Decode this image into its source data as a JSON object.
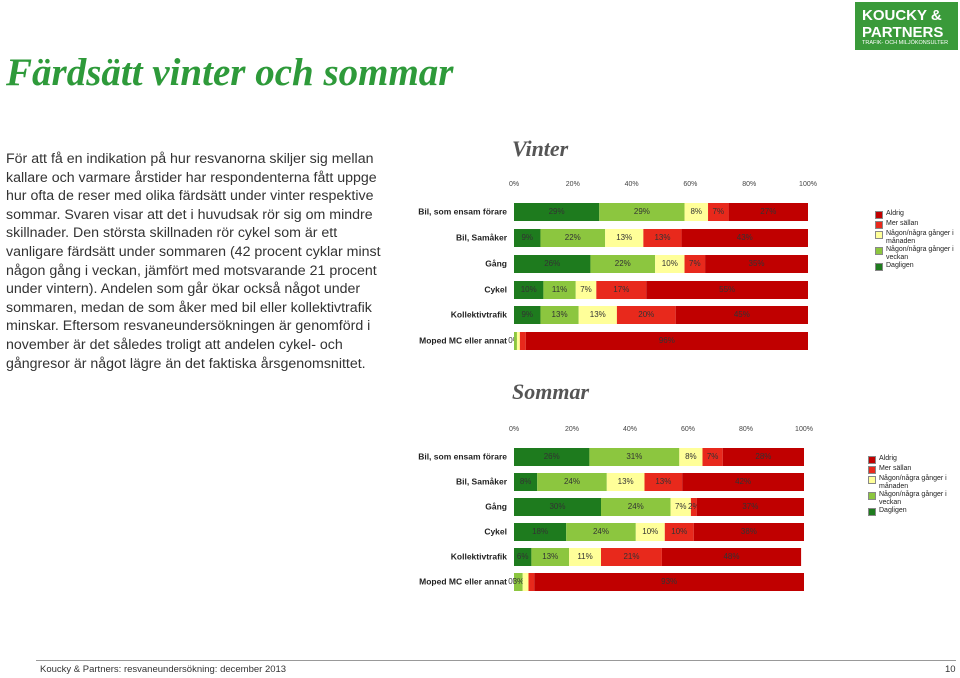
{
  "header": {
    "logo": "KOUCKY & PARTNERS",
    "logo_tagline": "TRAFIK- OCH MILJÖKONSULTER",
    "title": "Färdsätt vinter och sommar"
  },
  "body": {
    "paragraph": "För att få en indikation på hur resvanorna skiljer sig mellan kallare och varmare årstider har respondenterna fått uppge hur ofta de reser med olika färdsätt under vinter respektive sommar. Svaren visar att det i huvudsak rör sig om mindre skillnader. Den största skillnaden rör cykel som är ett vanligare färdsätt under sommaren (42 procent cyklar minst någon gång i veckan, jämfört med motsvarande 21 procent under vintern). Andelen som går ökar också något under sommaren, medan de som åker med bil eller kollektivtrafik minskar. Eftersom resvaneundersökningen är genomförd i november är det således troligt att andelen cykel- och gångresor är något lägre än det faktiska årsgenomsnittet."
  },
  "chart_data": [
    {
      "type": "stacked-barh",
      "title": "Vinter",
      "categories": [
        "Bil, som ensam förare",
        "Bil, Samåker",
        "Gång",
        "Cykel",
        "Kollektivtrafik",
        "Moped MC eller annat"
      ],
      "series": [
        {
          "name": "Dagligen",
          "color": "#1e7b1e",
          "values": [
            29,
            9,
            26,
            10,
            9,
            0
          ],
          "value_labels": [
            "29%",
            "9%",
            "26%",
            "10%",
            "9%",
            "0%"
          ]
        },
        {
          "name": "Någon/några gånger i veckan",
          "color": "#8cc63f",
          "values": [
            29,
            22,
            22,
            11,
            13,
            1
          ],
          "value_labels": [
            "29%",
            "22%",
            "22%",
            "11%",
            "13%",
            null
          ]
        },
        {
          "name": "Någon/några gånger i månaden",
          "color": "#ffff99",
          "values": [
            8,
            13,
            10,
            7,
            13,
            1
          ],
          "value_labels": [
            "8%",
            "13%",
            "10%",
            "7%",
            "13%",
            null
          ]
        },
        {
          "name": "Mer sällan",
          "color": "#e8291c",
          "values": [
            7,
            13,
            7,
            17,
            20,
            2
          ],
          "value_labels": [
            "7%",
            "13%",
            "7%",
            "17%",
            "20%",
            null
          ]
        },
        {
          "name": "Aldrig",
          "color": "#c00000",
          "values": [
            27,
            43,
            35,
            55,
            45,
            96
          ],
          "value_labels": [
            "27%",
            "43%",
            "35%",
            "55%",
            "45%",
            "96%"
          ]
        }
      ],
      "xlim": [
        0,
        100
      ],
      "xticks": [
        {
          "value": 0,
          "label": "0%"
        },
        {
          "value": 20,
          "label": "20%"
        },
        {
          "value": 40,
          "label": "40%"
        },
        {
          "value": 60,
          "label": "60%"
        },
        {
          "value": 80,
          "label": "80%"
        },
        {
          "value": 100,
          "label": "100%"
        }
      ],
      "grid": false
    },
    {
      "type": "stacked-barh",
      "title": "Sommar",
      "categories": [
        "Bil, som ensam förare",
        "Bil, Samåker",
        "Gång",
        "Cykel",
        "Kollektivtrafik",
        "Moped MC eller annat"
      ],
      "series": [
        {
          "name": "Dagligen",
          "color": "#1e7b1e",
          "values": [
            26,
            8,
            30,
            18,
            6,
            0
          ],
          "value_labels": [
            "26%",
            "8%",
            "30%",
            "18%",
            "6%",
            "0%"
          ]
        },
        {
          "name": "Någon/några gånger i veckan",
          "color": "#8cc63f",
          "values": [
            31,
            24,
            24,
            24,
            13,
            3
          ],
          "value_labels": [
            "31%",
            "24%",
            "24%",
            "24%",
            "13%",
            "3%"
          ]
        },
        {
          "name": "Någon/några gånger i månaden",
          "color": "#ffff99",
          "values": [
            8,
            13,
            7,
            10,
            11,
            2
          ],
          "value_labels": [
            "8%",
            "13%",
            "7%",
            "10%",
            "11%",
            null
          ]
        },
        {
          "name": "Mer sällan",
          "color": "#e8291c",
          "values": [
            7,
            13,
            2,
            10,
            21,
            2
          ],
          "value_labels": [
            "7%",
            "13%",
            "2%",
            "10%",
            "21%",
            null
          ]
        },
        {
          "name": "Aldrig",
          "color": "#c00000",
          "values": [
            28,
            42,
            37,
            38,
            48,
            93
          ],
          "value_labels": [
            "28%",
            "42%",
            "37%",
            "38%",
            "48%",
            "93%"
          ]
        }
      ],
      "xlim": [
        0,
        100
      ],
      "xticks": [
        {
          "value": 0,
          "label": "0%"
        },
        {
          "value": 20,
          "label": "20%"
        },
        {
          "value": 40,
          "label": "40%"
        },
        {
          "value": 60,
          "label": "60%"
        },
        {
          "value": 80,
          "label": "80%"
        },
        {
          "value": 100,
          "label": "100%"
        }
      ],
      "grid": false
    }
  ],
  "footer": {
    "text": "Koucky & Partners: resvaneundersökning: december 2013",
    "page": "10"
  }
}
